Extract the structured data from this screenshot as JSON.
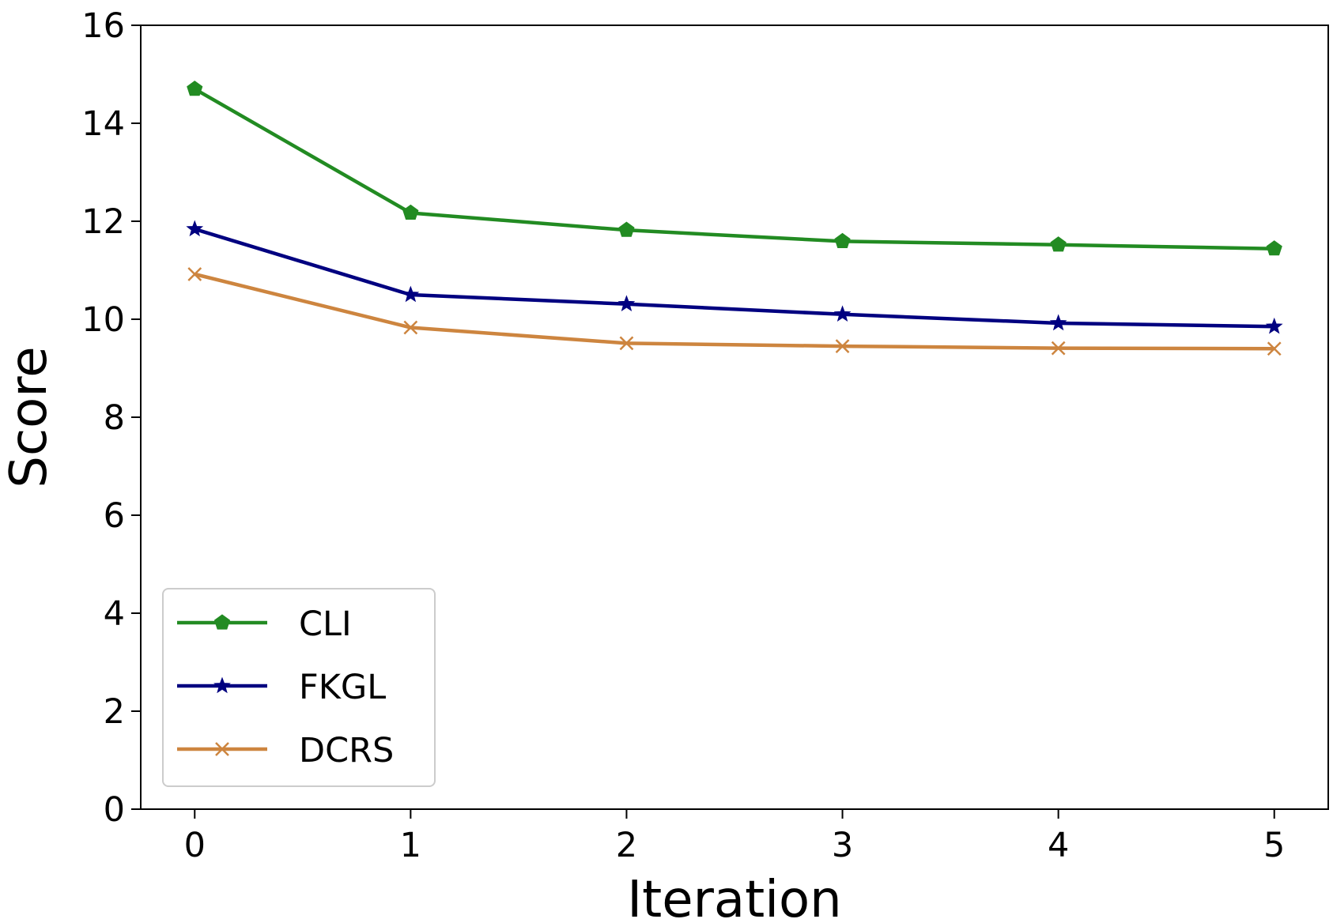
{
  "chart_data": {
    "type": "line",
    "title": "",
    "xlabel": "Iteration",
    "ylabel": "Score",
    "x": [
      0,
      1,
      2,
      3,
      4,
      5
    ],
    "xlim": [
      -0.25,
      5.25
    ],
    "ylim": [
      0,
      16
    ],
    "xticks": [
      "0",
      "1",
      "2",
      "3",
      "4",
      "5"
    ],
    "yticks": [
      "0",
      "2",
      "4",
      "6",
      "8",
      "10",
      "12",
      "14",
      "16"
    ],
    "grid": false,
    "legend_position": "lower-left",
    "series": [
      {
        "name": "CLI",
        "marker": "pentagon",
        "color": "#228b22",
        "values": [
          14.7,
          12.17,
          11.82,
          11.59,
          11.52,
          11.44
        ]
      },
      {
        "name": "FKGL",
        "marker": "star",
        "color": "#000080",
        "values": [
          11.84,
          10.5,
          10.31,
          10.1,
          9.92,
          9.85
        ]
      },
      {
        "name": "DCRS",
        "marker": "x",
        "color": "#cd853f",
        "values": [
          10.92,
          9.83,
          9.51,
          9.45,
          9.41,
          9.4
        ]
      }
    ]
  }
}
